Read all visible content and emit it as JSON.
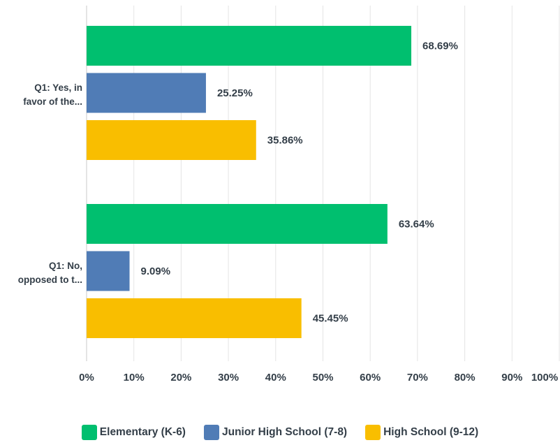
{
  "chart_data": {
    "type": "bar",
    "orientation": "horizontal",
    "categories": [
      [
        "Q1: Yes, in",
        "favor of the..."
      ],
      [
        "Q1: No,",
        "opposed to t..."
      ]
    ],
    "series": [
      {
        "name": "Elementary (K-6)",
        "color": "#00bf6f",
        "values": [
          68.69,
          63.64
        ],
        "labels": [
          "68.69%",
          "63.64%"
        ]
      },
      {
        "name": "Junior High School (7-8)",
        "color": "#507cb6",
        "values": [
          25.25,
          9.09
        ],
        "labels": [
          "25.25%",
          "9.09%"
        ]
      },
      {
        "name": "High School (9-12)",
        "color": "#f9be00",
        "values": [
          35.86,
          45.45
        ],
        "labels": [
          "35.86%",
          "45.45%"
        ]
      }
    ],
    "xlim": [
      0,
      100
    ],
    "x_ticks": [
      "0%",
      "10%",
      "20%",
      "30%",
      "40%",
      "50%",
      "60%",
      "70%",
      "80%",
      "90%",
      "100%"
    ],
    "grid": true,
    "legend_position": "bottom"
  }
}
